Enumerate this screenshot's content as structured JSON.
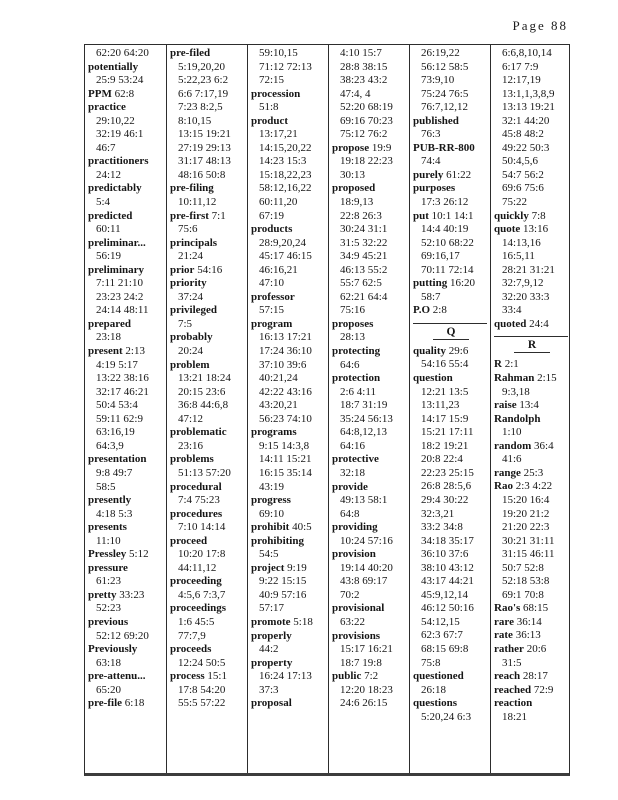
{
  "header": {
    "page_label": "Page 88"
  },
  "colors": {
    "text": "#161616",
    "border": "#2d2d2d",
    "paper": "#ffffff"
  },
  "table": {
    "columns": [
      {
        "lines": [
          {
            "r": "62:20 64:20"
          },
          {
            "w": "potentially"
          },
          {
            "r": "25:9 53:24"
          },
          {
            "w": "PPM",
            "r": "62:8"
          },
          {
            "w": "practice"
          },
          {
            "r": "29:10,22"
          },
          {
            "r": "32:19 46:1"
          },
          {
            "r": "46:7"
          },
          {
            "w": "practitioners"
          },
          {
            "r": "24:12"
          },
          {
            "w": "predictably"
          },
          {
            "r": "5:4"
          },
          {
            "w": "predicted"
          },
          {
            "r": "60:11"
          },
          {
            "w": "preliminar..."
          },
          {
            "r": "56:19"
          },
          {
            "w": "preliminary"
          },
          {
            "r": "7:11 21:10"
          },
          {
            "r": "23:23 24:2"
          },
          {
            "r": "24:14 48:11"
          },
          {
            "w": "prepared"
          },
          {
            "r": "23:18"
          },
          {
            "w": "present",
            "r": "2:13"
          },
          {
            "r": "4:19 5:17"
          },
          {
            "r": "13:22 38:16"
          },
          {
            "r": "32:17 46:21"
          },
          {
            "r": "50:4 53:4"
          },
          {
            "r": "59:11 62:9"
          },
          {
            "r": "63:16,19"
          },
          {
            "r": "64:3,9"
          },
          {
            "w": "presentation"
          },
          {
            "r": "9:8 49:7"
          },
          {
            "r": "58:5"
          },
          {
            "w": "presently"
          },
          {
            "r": "4:18 5:3"
          },
          {
            "w": "presents"
          },
          {
            "r": "11:10"
          },
          {
            "w": "Pressley",
            "r": "5:12"
          },
          {
            "w": "pressure"
          },
          {
            "r": "61:23"
          },
          {
            "w": "pretty",
            "r": "33:23"
          },
          {
            "r": "52:23"
          },
          {
            "w": "previous"
          },
          {
            "r": "52:12 69:20"
          },
          {
            "w": "Previously"
          },
          {
            "r": "63:18"
          },
          {
            "w": "pre-attenu..."
          },
          {
            "r": "65:20"
          },
          {
            "w": "pre-file",
            "r": "6:18"
          }
        ]
      },
      {
        "lines": [
          {
            "w": "pre-filed"
          },
          {
            "r": "5:19,20,20"
          },
          {
            "r": "5:22,23 6:2"
          },
          {
            "r": "6:6 7:17,19"
          },
          {
            "r": "7:23 8:2,5"
          },
          {
            "r": "8:10,15"
          },
          {
            "r": "13:15 19:21"
          },
          {
            "r": "27:19 29:13"
          },
          {
            "r": "31:17 48:13"
          },
          {
            "r": "48:16 50:8"
          },
          {
            "w": "pre-filing"
          },
          {
            "r": "10:11,12"
          },
          {
            "w": "pre-first",
            "r": "7:1"
          },
          {
            "r": "75:6"
          },
          {
            "w": "principals"
          },
          {
            "r": "21:24"
          },
          {
            "w": "prior",
            "r": "54:16"
          },
          {
            "w": "priority"
          },
          {
            "r": "37:24"
          },
          {
            "w": "privileged"
          },
          {
            "r": "7:5"
          },
          {
            "w": "probably"
          },
          {
            "r": "20:24"
          },
          {
            "w": "problem"
          },
          {
            "r": "13:21 18:24"
          },
          {
            "r": "20:15 23:6"
          },
          {
            "r": "36:8 44:6,8"
          },
          {
            "r": "47:12"
          },
          {
            "w": "problematic"
          },
          {
            "r": "23:16"
          },
          {
            "w": "problems"
          },
          {
            "r": "51:13 57:20"
          },
          {
            "w": "procedural"
          },
          {
            "r": "7:4 75:23"
          },
          {
            "w": "procedures"
          },
          {
            "r": "7:10 14:14"
          },
          {
            "w": "proceed"
          },
          {
            "r": "10:20 17:8"
          },
          {
            "r": "44:11,12"
          },
          {
            "w": "proceeding"
          },
          {
            "r": "4:5,6 7:3,7"
          },
          {
            "w": "proceedings"
          },
          {
            "r": "1:6 45:5"
          },
          {
            "r": "77:7,9"
          },
          {
            "w": "proceeds"
          },
          {
            "r": "12:24 50:5"
          },
          {
            "w": "process",
            "r": "15:1"
          },
          {
            "r": "17:8 54:20"
          },
          {
            "r": "55:5 57:22"
          }
        ]
      },
      {
        "lines": [
          {
            "r": "59:10,15"
          },
          {
            "r": "71:12 72:13"
          },
          {
            "r": "72:15"
          },
          {
            "w": "procession"
          },
          {
            "r": "51:8"
          },
          {
            "w": "product"
          },
          {
            "r": "13:17,21"
          },
          {
            "r": "14:15,20,22"
          },
          {
            "r": "14:23 15:3"
          },
          {
            "r": "15:18,22,23"
          },
          {
            "r": "58:12,16,22"
          },
          {
            "r": "60:11,20"
          },
          {
            "r": "67:19"
          },
          {
            "w": "products"
          },
          {
            "r": "28:9,20,24"
          },
          {
            "r": "45:17 46:15"
          },
          {
            "r": "46:16,21"
          },
          {
            "r": "47:10"
          },
          {
            "w": "professor"
          },
          {
            "r": "57:15"
          },
          {
            "w": "program"
          },
          {
            "r": "16:13 17:21"
          },
          {
            "r": "17:24 36:10"
          },
          {
            "r": "37:10 39:6"
          },
          {
            "r": "40:21,24"
          },
          {
            "r": "42:22 43:16"
          },
          {
            "r": "43:20,21"
          },
          {
            "r": "56:23 74:10"
          },
          {
            "w": "programs"
          },
          {
            "r": "9:15 14:3,8"
          },
          {
            "r": "14:11 15:21"
          },
          {
            "r": "16:15 35:14"
          },
          {
            "r": "43:19"
          },
          {
            "w": "progress"
          },
          {
            "r": "69:10"
          },
          {
            "w": "prohibit",
            "r": "40:5"
          },
          {
            "w": "prohibiting"
          },
          {
            "r": "54:5"
          },
          {
            "w": "project",
            "r": "9:19"
          },
          {
            "r": "9:22 15:15"
          },
          {
            "r": "40:9 57:16"
          },
          {
            "r": "57:17"
          },
          {
            "w": "promote",
            "r": "5:18"
          },
          {
            "w": "properly"
          },
          {
            "r": "44:2"
          },
          {
            "w": "property"
          },
          {
            "r": "16:24 17:13"
          },
          {
            "r": "37:3"
          },
          {
            "w": "proposal"
          }
        ]
      },
      {
        "lines": [
          {
            "r": "4:10 15:7"
          },
          {
            "r": "28:8 38:15"
          },
          {
            "r": "38:23 43:2"
          },
          {
            "r": "47:4, 4"
          },
          {
            "r": "52:20 68:19"
          },
          {
            "r": "69:16 70:23"
          },
          {
            "r": "75:12 76:2"
          },
          {
            "w": "propose",
            "r": "19:9"
          },
          {
            "r": "19:18 22:23"
          },
          {
            "r": "30:13"
          },
          {
            "w": "proposed"
          },
          {
            "r": "18:9,13"
          },
          {
            "r": "22:8 26:3"
          },
          {
            "r": "30:24 31:1"
          },
          {
            "r": "31:5 32:22"
          },
          {
            "r": "34:9 45:21"
          },
          {
            "r": "46:13 55:2"
          },
          {
            "r": "55:7 62:5"
          },
          {
            "r": "62:21 64:4"
          },
          {
            "r": "75:16"
          },
          {
            "w": "proposes"
          },
          {
            "r": "28:13"
          },
          {
            "w": "protecting"
          },
          {
            "r": "64:6"
          },
          {
            "w": "protection"
          },
          {
            "r": "2:6 4:11"
          },
          {
            "r": "18:7 31:19"
          },
          {
            "r": "35:24 56:13"
          },
          {
            "r": "64:8,12,13"
          },
          {
            "r": "64:16"
          },
          {
            "w": "protective"
          },
          {
            "r": "32:18"
          },
          {
            "w": "provide"
          },
          {
            "r": "49:13 58:1"
          },
          {
            "r": "64:8"
          },
          {
            "w": "providing"
          },
          {
            "r": "10:24 57:16"
          },
          {
            "w": "provision"
          },
          {
            "r": "19:14 40:20"
          },
          {
            "r": "43:8 69:17"
          },
          {
            "r": "70:2"
          },
          {
            "w": "provisional"
          },
          {
            "r": "63:22"
          },
          {
            "w": "provisions"
          },
          {
            "r": "15:17 16:21"
          },
          {
            "r": "18:7 19:8"
          },
          {
            "w": "public",
            "r": "7:2"
          },
          {
            "r": "12:20 18:23"
          },
          {
            "r": "24:6 26:15"
          }
        ]
      },
      {
        "lines": [
          {
            "r": "26:19,22"
          },
          {
            "r": "56:12 58:5"
          },
          {
            "r": "73:9,10"
          },
          {
            "r": "75:24 76:5"
          },
          {
            "r": "76:7,12,12"
          },
          {
            "w": "published"
          },
          {
            "r": "76:3"
          },
          {
            "w": "PUB-RR-800"
          },
          {
            "r": "74:4"
          },
          {
            "w": "purely",
            "r": "61:22"
          },
          {
            "w": "purposes"
          },
          {
            "r": "17:3 26:12"
          },
          {
            "w": "put",
            "r": "10:1 14:1"
          },
          {
            "r": "14:4 40:19"
          },
          {
            "r": "52:10 68:22"
          },
          {
            "r": "69:16,17"
          },
          {
            "r": "70:11 72:14"
          },
          {
            "w": "putting",
            "r": "16:20"
          },
          {
            "r": "58:7"
          },
          {
            "w": "P.O",
            "r": "2:8"
          },
          {
            "sec": "Q"
          },
          {
            "w": "quality",
            "r": "29:6"
          },
          {
            "r": "54:16 55:4"
          },
          {
            "w": "question"
          },
          {
            "r": "12:21 13:5"
          },
          {
            "r": "13:11,23"
          },
          {
            "r": "14:17 15:9"
          },
          {
            "r": "15:21 17:11"
          },
          {
            "r": "18:2 19:21"
          },
          {
            "r": "20:8 22:4"
          },
          {
            "r": "22:23 25:15"
          },
          {
            "r": "26:8 28:5,6"
          },
          {
            "r": "29:4 30:22"
          },
          {
            "r": "32:3,21"
          },
          {
            "r": "33:2 34:8"
          },
          {
            "r": "34:18 35:17"
          },
          {
            "r": "36:10 37:6"
          },
          {
            "r": "38:10 43:12"
          },
          {
            "r": "43:17 44:21"
          },
          {
            "r": "45:9,12,14"
          },
          {
            "r": "46:12 50:16"
          },
          {
            "r": "54:12,15"
          },
          {
            "r": "62:3 67:7"
          },
          {
            "r": "68:15 69:8"
          },
          {
            "r": "75:8"
          },
          {
            "w": "questioned"
          },
          {
            "r": "26:18"
          },
          {
            "w": "questions"
          },
          {
            "r": "5:20,24 6:3"
          }
        ]
      },
      {
        "lines": [
          {
            "r": "6:6,8,10,14"
          },
          {
            "r": "6:17 7:9"
          },
          {
            "r": "12:17,19"
          },
          {
            "r": "13:1,1,3,8,9"
          },
          {
            "r": "13:13 19:21"
          },
          {
            "r": "32:1 44:20"
          },
          {
            "r": "45:8 48:2"
          },
          {
            "r": "49:22 50:3"
          },
          {
            "r": "50:4,5,6"
          },
          {
            "r": "54:7 56:2"
          },
          {
            "r": "69:6 75:6"
          },
          {
            "r": "75:22"
          },
          {
            "w": "quickly",
            "r": "7:8"
          },
          {
            "w": "quote",
            "r": "13:16"
          },
          {
            "r": "14:13,16"
          },
          {
            "r": "16:5,11"
          },
          {
            "r": "28:21 31:21"
          },
          {
            "r": "32:7,9,12"
          },
          {
            "r": "32:20 33:3"
          },
          {
            "r": "33:4"
          },
          {
            "w": "quoted",
            "r": "24:4"
          },
          {
            "sec": "R"
          },
          {
            "w": "R",
            "r": "2:1"
          },
          {
            "w": "Rahman",
            "r": "2:15"
          },
          {
            "r": "9:3,18"
          },
          {
            "w": "raise",
            "r": "13:4"
          },
          {
            "w": "Randolph"
          },
          {
            "r": "1:10"
          },
          {
            "w": "random",
            "r": "36:4"
          },
          {
            "r": "41:6"
          },
          {
            "w": "range",
            "r": "25:3"
          },
          {
            "w": "Rao",
            "r": "2:3 4:22"
          },
          {
            "r": "15:20 16:4"
          },
          {
            "r": "19:20 21:2"
          },
          {
            "r": "21:20 22:3"
          },
          {
            "r": "30:21 31:11"
          },
          {
            "r": "31:15 46:11"
          },
          {
            "r": "50:7 52:8"
          },
          {
            "r": "52:18 53:8"
          },
          {
            "r": "69:1 70:8"
          },
          {
            "w": "Rao's",
            "r": "68:15"
          },
          {
            "w": "rare",
            "r": "36:14"
          },
          {
            "w": "rate",
            "r": "36:13"
          },
          {
            "w": "rather",
            "r": "20:6"
          },
          {
            "r": "31:5"
          },
          {
            "w": "reach",
            "r": "28:17"
          },
          {
            "w": "reached",
            "r": "72:9"
          },
          {
            "w": "reaction"
          },
          {
            "r": "18:21"
          }
        ]
      }
    ]
  }
}
